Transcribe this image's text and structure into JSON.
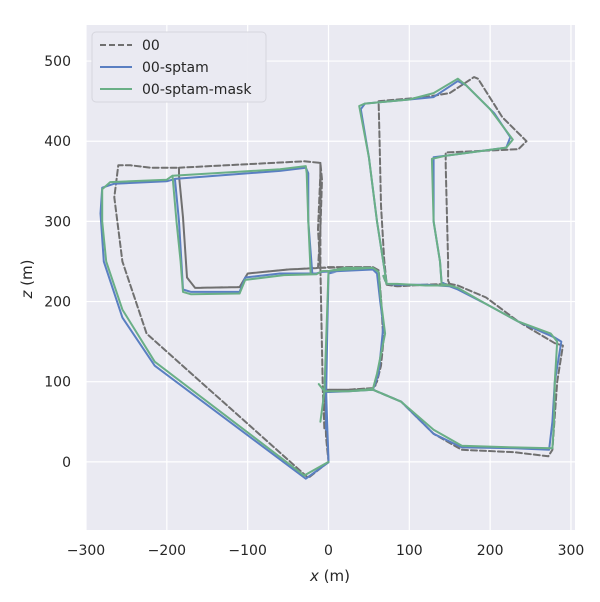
{
  "chart_data": {
    "type": "line",
    "title": "",
    "xlabel_var": "x",
    "xlabel_unit": " (m)",
    "ylabel_var": "z",
    "ylabel_unit": " (m)",
    "xlim": [
      -300,
      305
    ],
    "ylim": [
      -85,
      545
    ],
    "xticks": [
      -300,
      -200,
      -100,
      0,
      100,
      200,
      300
    ],
    "xtick_labels": [
      "−300",
      "−200",
      "−100",
      "0",
      "100",
      "200",
      "300"
    ],
    "yticks": [
      0,
      100,
      200,
      300,
      400,
      500
    ],
    "ytick_labels": [
      "0",
      "100",
      "200",
      "300",
      "400",
      "500"
    ],
    "grid": true,
    "legend_position": "top-left",
    "colors": {
      "background": "#eaeaf2",
      "grid": "#ffffff"
    },
    "series": [
      {
        "name": "00",
        "color": "#707070",
        "dashed": true,
        "points": [
          [
            0,
            0
          ],
          [
            -25,
            -20
          ],
          [
            -225,
            160
          ],
          [
            -255,
            250
          ],
          [
            -265,
            330
          ],
          [
            -260,
            370
          ],
          [
            -245,
            370
          ],
          [
            -220,
            367
          ],
          [
            -185,
            367
          ],
          [
            -185,
            357
          ],
          [
            -180,
            305
          ],
          [
            -175,
            230
          ],
          [
            -165,
            217
          ],
          [
            -110,
            218
          ],
          [
            -100,
            235
          ],
          [
            -50,
            240
          ],
          [
            -13,
            242
          ],
          [
            -10,
            290
          ],
          [
            -8,
            352
          ],
          [
            -10,
            373
          ],
          [
            -30,
            375
          ],
          [
            -185,
            367
          ],
          [
            -185,
            357
          ],
          [
            -180,
            305
          ],
          [
            -175,
            230
          ],
          [
            -165,
            217
          ],
          [
            -110,
            218
          ],
          [
            -100,
            235
          ],
          [
            -50,
            240
          ],
          [
            -10,
            242
          ],
          [
            30,
            243
          ],
          [
            55,
            243
          ],
          [
            62,
            239
          ],
          [
            65,
            205
          ],
          [
            68,
            150
          ],
          [
            65,
            120
          ],
          [
            60,
            100
          ],
          [
            55,
            92
          ],
          [
            25,
            90
          ],
          [
            -5,
            90
          ],
          [
            -5,
            40
          ],
          [
            -7,
            90
          ],
          [
            -10,
            242
          ],
          [
            -13,
            290
          ],
          [
            -10,
            360
          ],
          [
            -10,
            373
          ],
          [
            -10,
            242
          ],
          [
            0,
            243
          ],
          [
            55,
            243
          ],
          [
            62,
            239
          ],
          [
            65,
            205
          ],
          [
            68,
            150
          ],
          [
            58,
            95
          ],
          [
            55,
            92
          ],
          [
            25,
            90
          ],
          [
            -5,
            90
          ],
          [
            -3,
            30
          ],
          [
            0,
            0
          ],
          [
            -5,
            90
          ],
          [
            25,
            90
          ],
          [
            55,
            90
          ],
          [
            90,
            75
          ],
          [
            130,
            35
          ],
          [
            165,
            15
          ],
          [
            230,
            12
          ],
          [
            272,
            7
          ],
          [
            277,
            15
          ],
          [
            283,
            100
          ],
          [
            290,
            145
          ],
          [
            280,
            148
          ],
          [
            235,
            175
          ],
          [
            195,
            205
          ],
          [
            160,
            220
          ],
          [
            150,
            222
          ],
          [
            120,
            221
          ],
          [
            85,
            219
          ],
          [
            72,
            221
          ],
          [
            69,
            252
          ],
          [
            65,
            320
          ],
          [
            63,
            410
          ],
          [
            62,
            450
          ],
          [
            120,
            455
          ],
          [
            150,
            460
          ],
          [
            180,
            480
          ],
          [
            185,
            478
          ],
          [
            215,
            430
          ],
          [
            245,
            400
          ],
          [
            235,
            390
          ],
          [
            145,
            386
          ],
          [
            145,
            370
          ],
          [
            148,
            250
          ],
          [
            148,
            226
          ],
          [
            150,
            222
          ],
          [
            120,
            221
          ],
          [
            85,
            219
          ],
          [
            72,
            221
          ],
          [
            68,
            232
          ]
        ]
      },
      {
        "name": "00-sptam",
        "color": "#5a7fc2",
        "dashed": false,
        "points": [
          [
            0,
            -0.5
          ],
          [
            -28,
            -21
          ],
          [
            -215,
            120
          ],
          [
            -255,
            180
          ],
          [
            -278,
            250
          ],
          [
            -282,
            310
          ],
          [
            -280,
            342
          ],
          [
            -265,
            347
          ],
          [
            -200,
            350
          ],
          [
            -190,
            353
          ],
          [
            -185,
            300
          ],
          [
            -182,
            250
          ],
          [
            -180,
            215
          ],
          [
            -170,
            212
          ],
          [
            -110,
            212
          ],
          [
            -103,
            230
          ],
          [
            -60,
            235
          ],
          [
            -20,
            235
          ],
          [
            -25,
            300
          ],
          [
            -25,
            360
          ],
          [
            -28,
            367
          ],
          [
            -60,
            363
          ],
          [
            -190,
            353
          ],
          [
            -185,
            300
          ],
          [
            -182,
            250
          ],
          [
            -180,
            215
          ],
          [
            -170,
            212
          ],
          [
            -110,
            212
          ],
          [
            -103,
            230
          ],
          [
            -60,
            235
          ],
          [
            -15,
            235
          ],
          [
            -8,
            237
          ],
          [
            55,
            240
          ],
          [
            60,
            235
          ],
          [
            64,
            200
          ],
          [
            68,
            170
          ],
          [
            62,
            110
          ],
          [
            55,
            90
          ],
          [
            25,
            88
          ],
          [
            -3,
            87
          ],
          [
            -3,
            40
          ],
          [
            -3,
            87
          ],
          [
            0,
            235
          ],
          [
            20,
            240
          ],
          [
            55,
            240
          ],
          [
            60,
            235
          ],
          [
            64,
            200
          ],
          [
            68,
            170
          ],
          [
            62,
            110
          ],
          [
            55,
            90
          ],
          [
            25,
            88
          ],
          [
            -3,
            87
          ],
          [
            0,
            2
          ],
          [
            -3,
            87
          ],
          [
            25,
            88
          ],
          [
            55,
            90
          ],
          [
            90,
            75
          ],
          [
            130,
            35
          ],
          [
            165,
            18
          ],
          [
            230,
            17
          ],
          [
            273,
            15
          ],
          [
            277,
            50
          ],
          [
            280,
            100
          ],
          [
            288,
            150
          ],
          [
            280,
            155
          ],
          [
            235,
            175
          ],
          [
            195,
            197
          ],
          [
            160,
            215
          ],
          [
            150,
            219
          ],
          [
            120,
            221
          ],
          [
            85,
            221
          ],
          [
            72,
            222
          ],
          [
            60,
            300
          ],
          [
            50,
            380
          ],
          [
            40,
            440
          ],
          [
            45,
            447
          ],
          [
            100,
            452
          ],
          [
            130,
            455
          ],
          [
            160,
            475
          ],
          [
            170,
            470
          ],
          [
            205,
            435
          ],
          [
            225,
            405
          ],
          [
            220,
            392
          ],
          [
            145,
            382
          ],
          [
            130,
            380
          ],
          [
            130,
            300
          ],
          [
            138,
            250
          ],
          [
            140,
            224
          ],
          [
            150,
            219
          ],
          [
            120,
            221
          ],
          [
            85,
            221
          ],
          [
            72,
            222
          ],
          [
            68,
            232
          ]
        ]
      },
      {
        "name": "00-sptam-mask",
        "color": "#6aaf86",
        "dashed": false,
        "points": [
          [
            0,
            0
          ],
          [
            -30,
            -17
          ],
          [
            -215,
            125
          ],
          [
            -255,
            190
          ],
          [
            -275,
            250
          ],
          [
            -280,
            300
          ],
          [
            -280,
            340
          ],
          [
            -270,
            349
          ],
          [
            -200,
            352
          ],
          [
            -193,
            357
          ],
          [
            -188,
            300
          ],
          [
            -183,
            250
          ],
          [
            -180,
            212
          ],
          [
            -170,
            209
          ],
          [
            -110,
            210
          ],
          [
            -103,
            227
          ],
          [
            -55,
            233
          ],
          [
            -22,
            234
          ],
          [
            -25,
            300
          ],
          [
            -27,
            360
          ],
          [
            -28,
            369
          ],
          [
            -60,
            365
          ],
          [
            -193,
            357
          ],
          [
            -188,
            300
          ],
          [
            -183,
            250
          ],
          [
            -180,
            212
          ],
          [
            -170,
            209
          ],
          [
            -110,
            210
          ],
          [
            -103,
            227
          ],
          [
            -55,
            233
          ],
          [
            -15,
            234
          ],
          [
            -8,
            238
          ],
          [
            55,
            242
          ],
          [
            62,
            237
          ],
          [
            65,
            200
          ],
          [
            70,
            160
          ],
          [
            60,
            110
          ],
          [
            55,
            91
          ],
          [
            25,
            88
          ],
          [
            -5,
            88
          ],
          [
            -10,
            50
          ],
          [
            -5,
            88
          ],
          [
            0,
            238
          ],
          [
            20,
            242
          ],
          [
            55,
            242
          ],
          [
            62,
            237
          ],
          [
            65,
            200
          ],
          [
            70,
            160
          ],
          [
            60,
            110
          ],
          [
            55,
            91
          ],
          [
            25,
            88
          ],
          [
            -5,
            88
          ],
          [
            -12,
            97
          ],
          [
            -5,
            88
          ],
          [
            25,
            88
          ],
          [
            55,
            90
          ],
          [
            90,
            75
          ],
          [
            130,
            40
          ],
          [
            165,
            20
          ],
          [
            230,
            18
          ],
          [
            277,
            17
          ],
          [
            279,
            50
          ],
          [
            280,
            100
          ],
          [
            283,
            150
          ],
          [
            275,
            160
          ],
          [
            235,
            175
          ],
          [
            195,
            197
          ],
          [
            160,
            217
          ],
          [
            150,
            220
          ],
          [
            120,
            220
          ],
          [
            85,
            222
          ],
          [
            72,
            222
          ],
          [
            60,
            300
          ],
          [
            50,
            380
          ],
          [
            38,
            444
          ],
          [
            45,
            447
          ],
          [
            100,
            452
          ],
          [
            130,
            460
          ],
          [
            160,
            478
          ],
          [
            170,
            470
          ],
          [
            200,
            440
          ],
          [
            228,
            402
          ],
          [
            220,
            392
          ],
          [
            145,
            382
          ],
          [
            128,
            378
          ],
          [
            130,
            300
          ],
          [
            138,
            250
          ],
          [
            140,
            222
          ],
          [
            150,
            220
          ],
          [
            120,
            220
          ],
          [
            85,
            222
          ],
          [
            72,
            222
          ],
          [
            68,
            232
          ]
        ]
      }
    ]
  }
}
